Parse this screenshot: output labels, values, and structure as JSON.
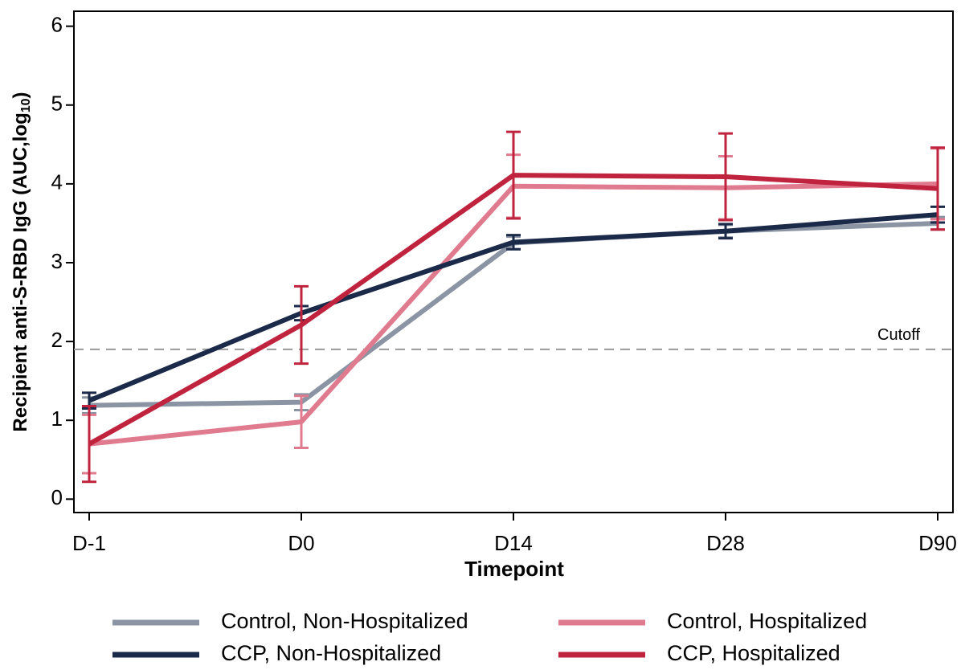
{
  "chart_data": {
    "type": "line",
    "x_label": "Timepoint",
    "y_label": {
      "text": "Recipient anti-S-RBD IgG (AUC,log",
      "subscript": "10",
      "suffix": ")"
    },
    "categories": [
      "D-1",
      "D0",
      "D14",
      "D28",
      "D90"
    ],
    "ylim": [
      -0.17,
      6.19
    ],
    "yticks": [
      0,
      1,
      2,
      3,
      4,
      5,
      6
    ],
    "reference_line": {
      "value": 1.9,
      "label": "Cutoff",
      "color": "#999999"
    },
    "series": [
      {
        "name": "Control, Non-Hospitalized",
        "color": "#8a94a3",
        "values": [
          1.19,
          1.23,
          3.25,
          3.4,
          3.5
        ],
        "errors": [
          0.1,
          0.1,
          0.08,
          0.08,
          0.08
        ]
      },
      {
        "name": "Control, Hospitalized",
        "color": "#e07b8f",
        "values": [
          0.7,
          0.98,
          3.97,
          3.95,
          4.0
        ],
        "errors": [
          0.37,
          0.33,
          0.4,
          0.4,
          0.45
        ]
      },
      {
        "name": "CCP, Non-Hospitalized",
        "color": "#1c2a4a",
        "values": [
          1.25,
          2.36,
          3.26,
          3.4,
          3.61
        ],
        "errors": [
          0.1,
          0.09,
          0.09,
          0.09,
          0.1
        ]
      },
      {
        "name": "CCP, Hospitalized",
        "color": "#c0233d",
        "values": [
          0.7,
          2.21,
          4.11,
          4.09,
          3.94
        ],
        "errors": [
          0.48,
          0.49,
          0.55,
          0.55,
          0.52
        ]
      }
    ]
  }
}
